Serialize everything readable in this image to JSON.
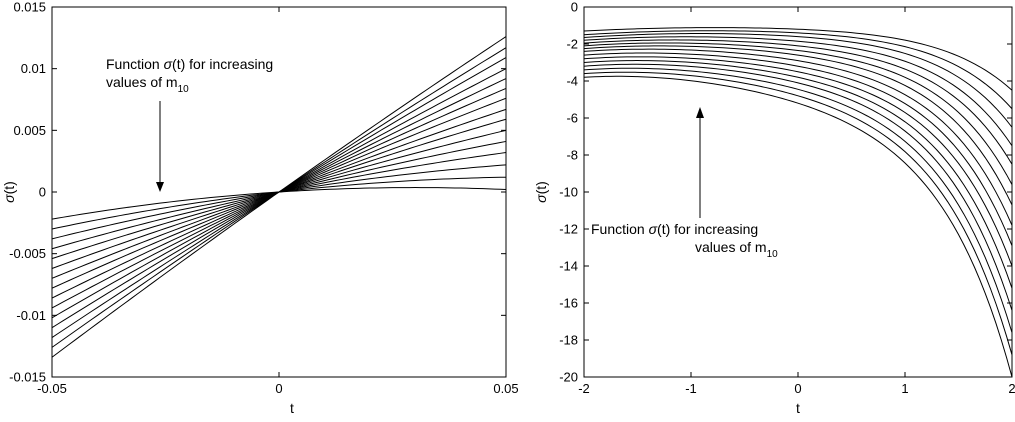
{
  "chart_data": [
    {
      "type": "line",
      "title": "",
      "xlabel": "t",
      "ylabel": "σ(t)",
      "xlim": [
        -0.05,
        0.05
      ],
      "ylim": [
        -0.015,
        0.015
      ],
      "xticks": [
        "-0.05",
        "0",
        "0.05"
      ],
      "yticks": [
        "-0.015",
        "-0.01",
        "-0.005",
        "0",
        "0.005",
        "0.01",
        "0.015"
      ],
      "grid": false,
      "annotation": {
        "prefix": "Function ",
        "symbol": "σ",
        "suffix": "(t) for increasing",
        "line2": "values of m",
        "subscript": "10"
      },
      "series": [
        {
          "values_at_x_min": -0.0022,
          "values_at_x_max": 0.0002
        },
        {
          "values_at_x_min": -0.003,
          "values_at_x_max": 0.0012
        },
        {
          "values_at_x_min": -0.0038,
          "values_at_x_max": 0.0022
        },
        {
          "values_at_x_min": -0.0046,
          "values_at_x_max": 0.0032
        },
        {
          "values_at_x_min": -0.0054,
          "values_at_x_max": 0.0041
        },
        {
          "values_at_x_min": -0.0062,
          "values_at_x_max": 0.005
        },
        {
          "values_at_x_min": -0.007,
          "values_at_x_max": 0.0059
        },
        {
          "values_at_x_min": -0.0078,
          "values_at_x_max": 0.0067
        },
        {
          "values_at_x_min": -0.0086,
          "values_at_x_max": 0.0076
        },
        {
          "values_at_x_min": -0.0094,
          "values_at_x_max": 0.0084
        },
        {
          "values_at_x_min": -0.0102,
          "values_at_x_max": 0.0092
        },
        {
          "values_at_x_min": -0.011,
          "values_at_x_max": 0.01
        },
        {
          "values_at_x_min": -0.0118,
          "values_at_x_max": 0.0109
        },
        {
          "values_at_x_min": -0.0126,
          "values_at_x_max": 0.0117
        },
        {
          "values_at_x_min": -0.0134,
          "values_at_x_max": 0.0126
        }
      ]
    },
    {
      "type": "line",
      "title": "",
      "xlabel": "t",
      "ylabel": "σ(t)",
      "xlim": [
        -2,
        2
      ],
      "ylim": [
        -20,
        0
      ],
      "xticks": [
        "-2",
        "-1",
        "0",
        "1",
        "2"
      ],
      "yticks": [
        "-20",
        "-18",
        "-16",
        "-14",
        "-12",
        "-10",
        "-8",
        "-6",
        "-4",
        "-2",
        "0"
      ],
      "grid": false,
      "annotation": {
        "prefix": "Function ",
        "symbol": "σ",
        "suffix": "(t) for increasing",
        "line2": "values of m",
        "subscript": "10"
      },
      "series": [
        {
          "y_at_t_minus2": -1.3,
          "y_at_t_0": -1.2,
          "y_at_t_2": -4.5
        },
        {
          "y_at_t_minus2": -1.5,
          "y_at_t_0": -1.4,
          "y_at_t_2": -5.5
        },
        {
          "y_at_t_minus2": -1.65,
          "y_at_t_0": -1.6,
          "y_at_t_2": -6.5
        },
        {
          "y_at_t_minus2": -1.8,
          "y_at_t_0": -1.85,
          "y_at_t_2": -7.5
        },
        {
          "y_at_t_minus2": -1.95,
          "y_at_t_0": -2.1,
          "y_at_t_2": -8.5
        },
        {
          "y_at_t_minus2": -2.1,
          "y_at_t_0": -2.35,
          "y_at_t_2": -9.6
        },
        {
          "y_at_t_minus2": -2.25,
          "y_at_t_0": -2.6,
          "y_at_t_2": -10.7
        },
        {
          "y_at_t_minus2": -2.4,
          "y_at_t_0": -2.9,
          "y_at_t_2": -11.8
        },
        {
          "y_at_t_minus2": -2.6,
          "y_at_t_0": -3.2,
          "y_at_t_2": -12.9
        },
        {
          "y_at_t_minus2": -2.8,
          "y_at_t_0": -3.5,
          "y_at_t_2": -14.0
        },
        {
          "y_at_t_minus2": -3.0,
          "y_at_t_0": -3.8,
          "y_at_t_2": -15.2
        },
        {
          "y_at_t_minus2": -3.2,
          "y_at_t_0": -4.1,
          "y_at_t_2": -16.4
        },
        {
          "y_at_t_minus2": -3.4,
          "y_at_t_0": -4.45,
          "y_at_t_2": -17.6
        },
        {
          "y_at_t_minus2": -3.6,
          "y_at_t_0": -4.8,
          "y_at_t_2": -18.8
        },
        {
          "y_at_t_minus2": -3.8,
          "y_at_t_0": -5.2,
          "y_at_t_2": -20.0
        }
      ]
    }
  ]
}
